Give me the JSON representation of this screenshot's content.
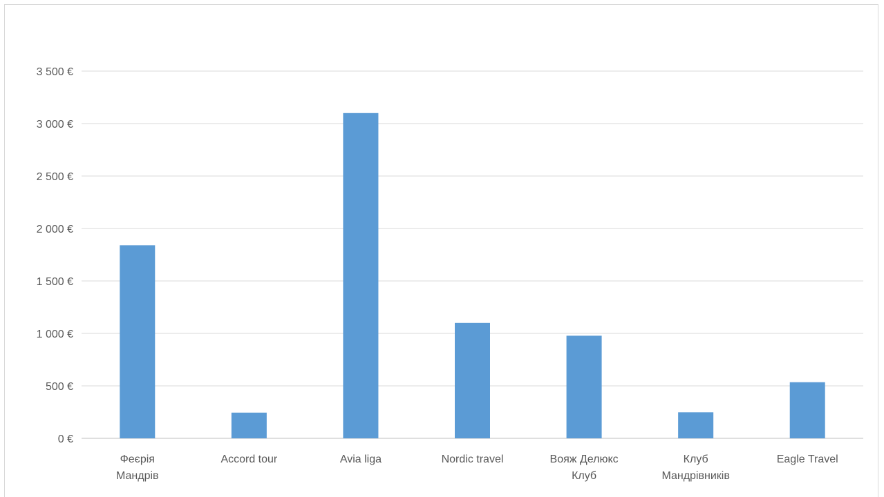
{
  "chart_data": {
    "type": "bar",
    "categories": [
      [
        "Феєрія",
        "Мандрів"
      ],
      [
        "Accord tour"
      ],
      [
        "Avia liga"
      ],
      [
        "Nordic travel"
      ],
      [
        "Вояж Делюкс",
        "Клуб"
      ],
      [
        "Клуб",
        "Мандрівників"
      ],
      [
        "Eagle Travel"
      ]
    ],
    "values": [
      1840,
      245,
      3100,
      1100,
      978,
      248,
      535
    ],
    "yticks": [
      0,
      500,
      1000,
      1500,
      2000,
      2500,
      3000,
      3500
    ],
    "ytick_labels": [
      "0 €",
      "500 €",
      "1 000 €",
      "1 500 €",
      "2 000 €",
      "2 500 €",
      "3 000 €",
      "3 500 €"
    ],
    "ylim": [
      0,
      3500
    ],
    "grid": true,
    "colors": {
      "bar": "#5b9bd5",
      "grid": "#d9d9d9",
      "axis": "#bfbfbf",
      "text": "#595959"
    }
  }
}
